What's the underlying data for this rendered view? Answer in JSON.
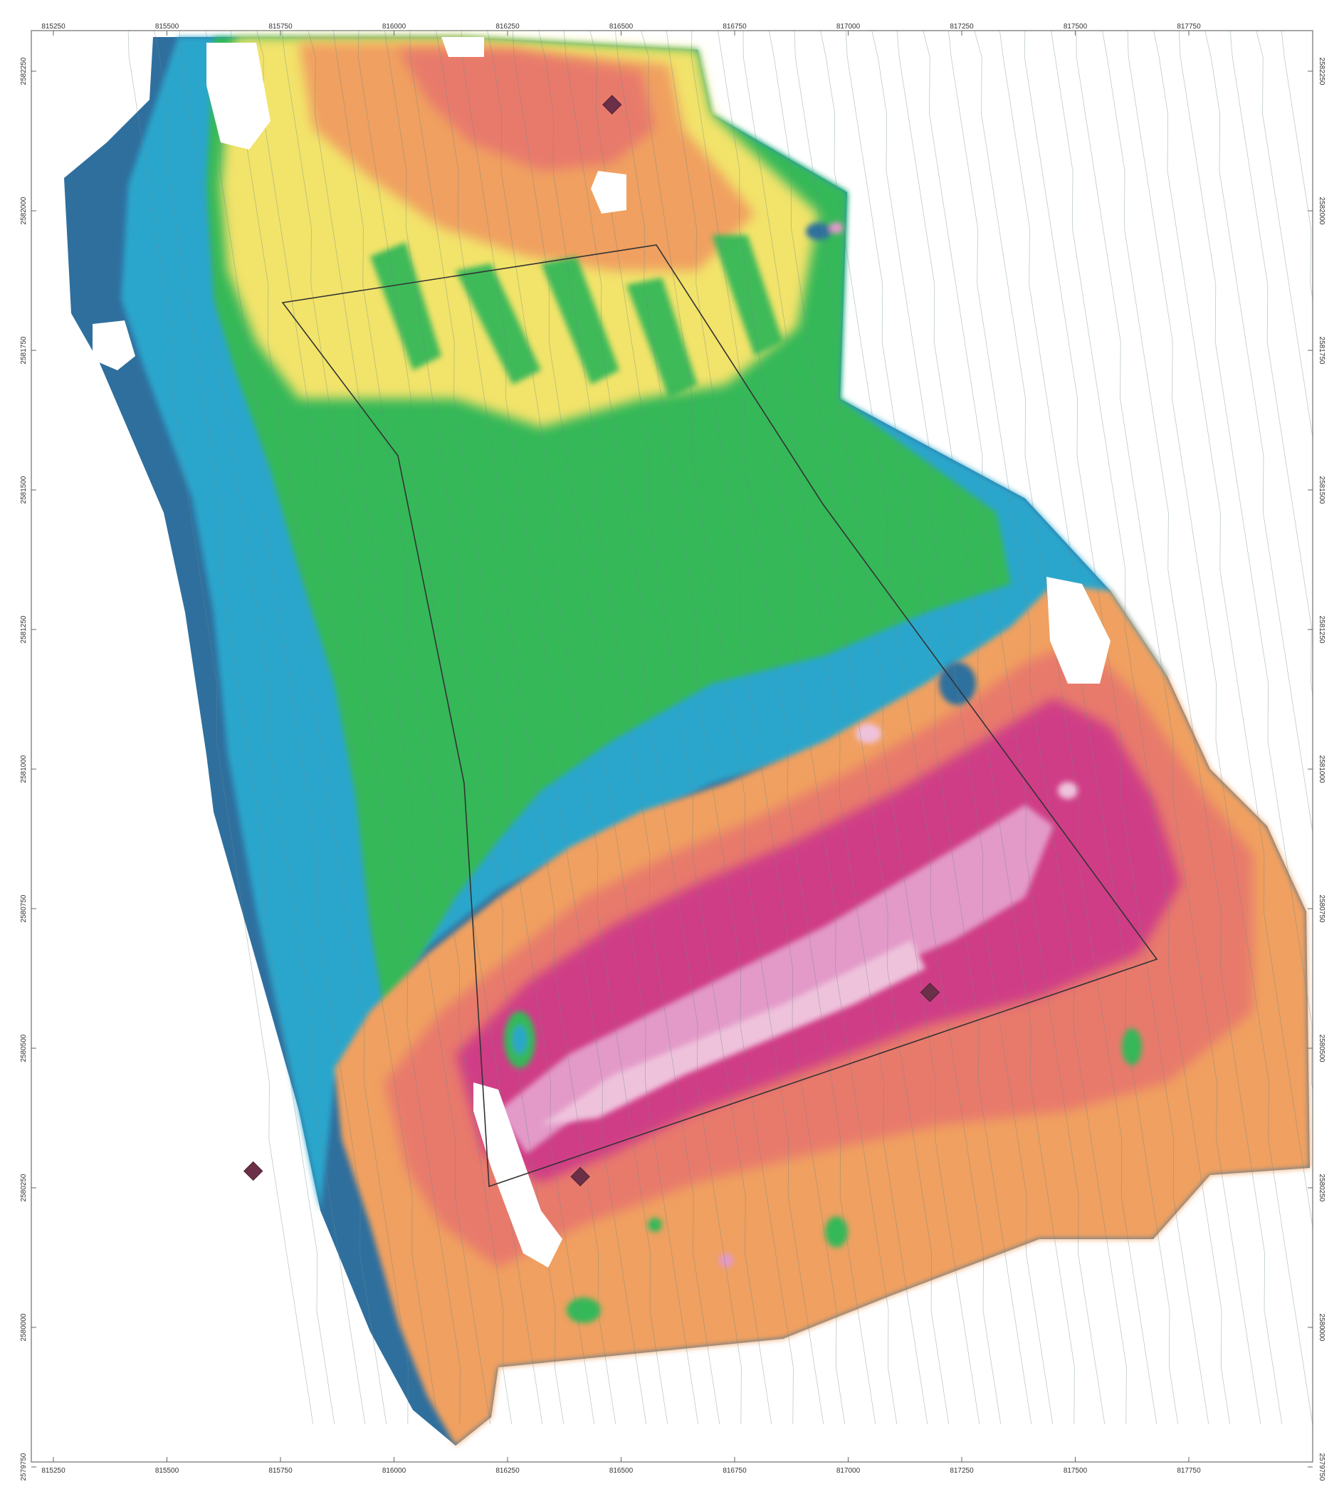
{
  "map": {
    "x_ticks": [
      {
        "label": "815250",
        "x": 815250
      },
      {
        "label": "815500",
        "x": 815500
      },
      {
        "label": "815750",
        "x": 815750
      },
      {
        "label": "816000",
        "x": 816000
      },
      {
        "label": "816250",
        "x": 816250
      },
      {
        "label": "816500",
        "x": 816500
      },
      {
        "label": "816750",
        "x": 816750
      },
      {
        "label": "817000",
        "x": 817000
      },
      {
        "label": "817250",
        "x": 817250
      },
      {
        "label": "817500",
        "x": 817500
      },
      {
        "label": "817750",
        "x": 817750
      }
    ],
    "y_ticks_left": [
      {
        "label": "2582250",
        "y": 2582250
      },
      {
        "label": "2582000",
        "y": 2582000
      },
      {
        "label": "2581750",
        "y": 2581750
      },
      {
        "label": "2581500",
        "y": 2581500
      },
      {
        "label": "2581250",
        "y": 2581250
      },
      {
        "label": "2581000",
        "y": 2581000
      },
      {
        "label": "2580750",
        "y": 2580750
      },
      {
        "label": "2580500",
        "y": 2580500
      },
      {
        "label": "2580250",
        "y": 2580250
      },
      {
        "label": "2580000",
        "y": 2580000
      },
      {
        "label": "2579750",
        "y": 2579750
      }
    ],
    "y_ticks_right": [
      {
        "label": "2582250",
        "y": 2582250
      },
      {
        "label": "2582000",
        "y": 2582000
      },
      {
        "label": "2581750",
        "y": 2581750
      },
      {
        "label": "2581500",
        "y": 2581500
      },
      {
        "label": "2581250",
        "y": 2581250
      },
      {
        "label": "2581000",
        "y": 2581000
      },
      {
        "label": "2580750",
        "y": 2580750
      },
      {
        "label": "2580500",
        "y": 2580500
      },
      {
        "label": "2580250",
        "y": 2580250
      },
      {
        "label": "2580000",
        "y": 2580000
      },
      {
        "label": "2579750",
        "y": 2579750
      }
    ],
    "colors": {
      "deep_blue": "#2f6f9e",
      "blue": "#2aa6cc",
      "cyan": "#39b8c4",
      "green": "#34b858",
      "light_green": "#8fd05a",
      "yellow": "#f2e36a",
      "orange": "#f0a060",
      "salmon": "#e87a6c",
      "magenta": "#cf3c86",
      "pink": "#e39ac8",
      "light_pink": "#efc2dc",
      "marker": "#6b3048",
      "outline": "#333333"
    },
    "markers": [
      {
        "name": "marker-north",
        "x": 816480,
        "y": 2582190
      },
      {
        "name": "marker-east",
        "x": 817180,
        "y": 2580600
      },
      {
        "name": "marker-south",
        "x": 816410,
        "y": 2580270
      },
      {
        "name": "marker-west",
        "x": 815690,
        "y": 2580280
      }
    ]
  }
}
